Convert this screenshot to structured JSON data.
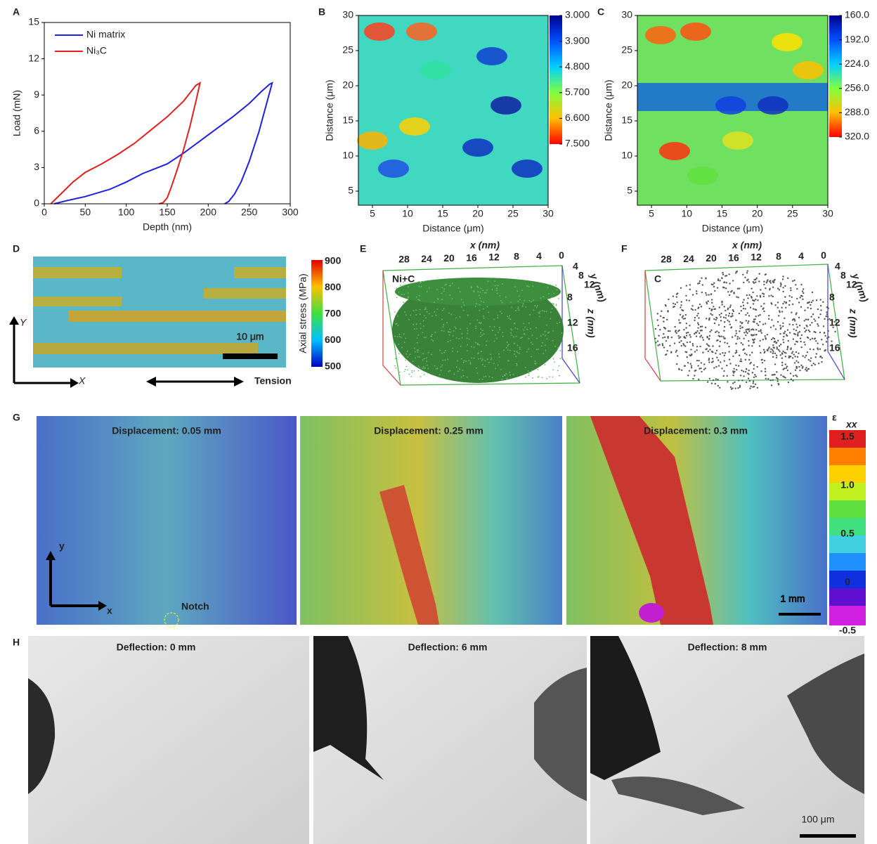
{
  "chart_data": [
    {
      "type": "line",
      "xlabel": "Depth (nm)",
      "ylabel": "Load (mN)",
      "xlim": [
        0,
        300
      ],
      "xticks": [
        0,
        50,
        100,
        150,
        200,
        250,
        300
      ],
      "ylim": [
        0,
        15
      ],
      "yticks": [
        0,
        3,
        6,
        9,
        12,
        15
      ],
      "legend": "upper left",
      "series": [
        {
          "name": "Ni matrix",
          "color": "#2020e0",
          "x": [
            12,
            30,
            50,
            80,
            100,
            120,
            150,
            170,
            190,
            210,
            230,
            250,
            265,
            275,
            278,
            272,
            262,
            250,
            240,
            232,
            225,
            220
          ],
          "values": [
            0,
            0.3,
            0.6,
            1.2,
            1.8,
            2.5,
            3.3,
            4.2,
            5.2,
            6.2,
            7.2,
            8.3,
            9.3,
            9.9,
            10,
            8.5,
            6,
            3.5,
            1.8,
            0.8,
            0.2,
            0
          ]
        },
        {
          "name": "Ni₃C",
          "color": "#e02020",
          "x": [
            8,
            20,
            35,
            50,
            70,
            90,
            110,
            130,
            150,
            170,
            185,
            190,
            185,
            178,
            170,
            162,
            155,
            150,
            145,
            140
          ],
          "values": [
            0,
            0.8,
            1.8,
            2.6,
            3.3,
            4.1,
            5,
            6.1,
            7.2,
            8.5,
            9.8,
            10,
            8.5,
            6.5,
            4.5,
            2.8,
            1.4,
            0.5,
            0.1,
            0
          ]
        }
      ]
    },
    {
      "type": "contour",
      "xlabel": "Distance (μm)",
      "ylabel": "Distance (μm)",
      "xlim": [
        3,
        30
      ],
      "xticks": [
        5,
        10,
        15,
        20,
        25,
        30
      ],
      "ylim": [
        3,
        30
      ],
      "yticks": [
        5,
        10,
        15,
        20,
        25,
        30
      ],
      "colorbar_lim": [
        3,
        7.5
      ],
      "colorbar_ticks": [
        {
          "value": 3,
          "label": "3.000"
        },
        {
          "value": 3.9,
          "label": "3.900"
        },
        {
          "value": 4.8,
          "label": "4.800"
        },
        {
          "value": 5.7,
          "label": "5.700"
        },
        {
          "value": 6.6,
          "label": "6.600"
        },
        {
          "value": 7.5,
          "label": "7.500"
        }
      ]
    },
    {
      "type": "contour",
      "xlabel": "Distance (μm)",
      "ylabel": "Distance (μm)",
      "xlim": [
        3,
        30
      ],
      "xticks": [
        5,
        10,
        15,
        20,
        25,
        30
      ],
      "ylim": [
        3,
        30
      ],
      "yticks": [
        5,
        10,
        15,
        20,
        25,
        30
      ],
      "colorbar_lim": [
        160,
        320
      ],
      "colorbar_ticks": [
        {
          "value": 160,
          "label": "160.0"
        },
        {
          "value": 192,
          "label": "192.0"
        },
        {
          "value": 224,
          "label": "224.0"
        },
        {
          "value": 256,
          "label": "256.0"
        },
        {
          "value": 288,
          "label": "288.0"
        },
        {
          "value": 320,
          "label": "320.0"
        }
      ]
    }
  ],
  "panel_labels": [
    "A",
    "B",
    "C",
    "D",
    "E",
    "F",
    "G",
    "H"
  ],
  "D": {
    "colorbar_title": "Axial stress (MPa)",
    "colorbar_ticks": [
      "900",
      "800",
      "700",
      "600",
      "500"
    ],
    "scale_bar": "10 μm",
    "axis_y": "Y",
    "axis_x": "X",
    "arrow_label": "Tension"
  },
  "E": {
    "x_label": "x (nm)",
    "x_ticks": [
      "28",
      "24",
      "20",
      "16",
      "12",
      "8",
      "4",
      "0"
    ],
    "y_label": "y (nm)",
    "y_ticks": [
      "4",
      "8",
      "12"
    ],
    "z_label": "z (nm)",
    "z_ticks": [
      "8",
      "12",
      "16"
    ],
    "label": "Ni+C"
  },
  "F": {
    "x_label": "x (nm)",
    "x_ticks": [
      "28",
      "24",
      "20",
      "16",
      "12",
      "8",
      "4",
      "0"
    ],
    "y_label": "y (nm)",
    "y_ticks": [
      "4",
      "8",
      "12"
    ],
    "z_label": "z (nm)",
    "z_ticks": [
      "8",
      "12",
      "16"
    ],
    "label": "C"
  },
  "G": {
    "titles": [
      "Displacement: 0.05 mm",
      "Displacement: 0.25 mm",
      "Displacement: 0.3 mm"
    ],
    "colorbar_symbol": "ε",
    "colorbar_subscript": "xx",
    "colorbar_ticks": [
      "1.5",
      "1.0",
      "0.5",
      "0",
      "-0.5"
    ],
    "scale_bar": "1 mm",
    "notch": "Notch",
    "axis_y": "y",
    "axis_x": "x"
  },
  "H": {
    "titles": [
      "Deflection: 0 mm",
      "Deflection: 6 mm",
      "Deflection: 8 mm"
    ],
    "scale_bar": "100 μm"
  }
}
